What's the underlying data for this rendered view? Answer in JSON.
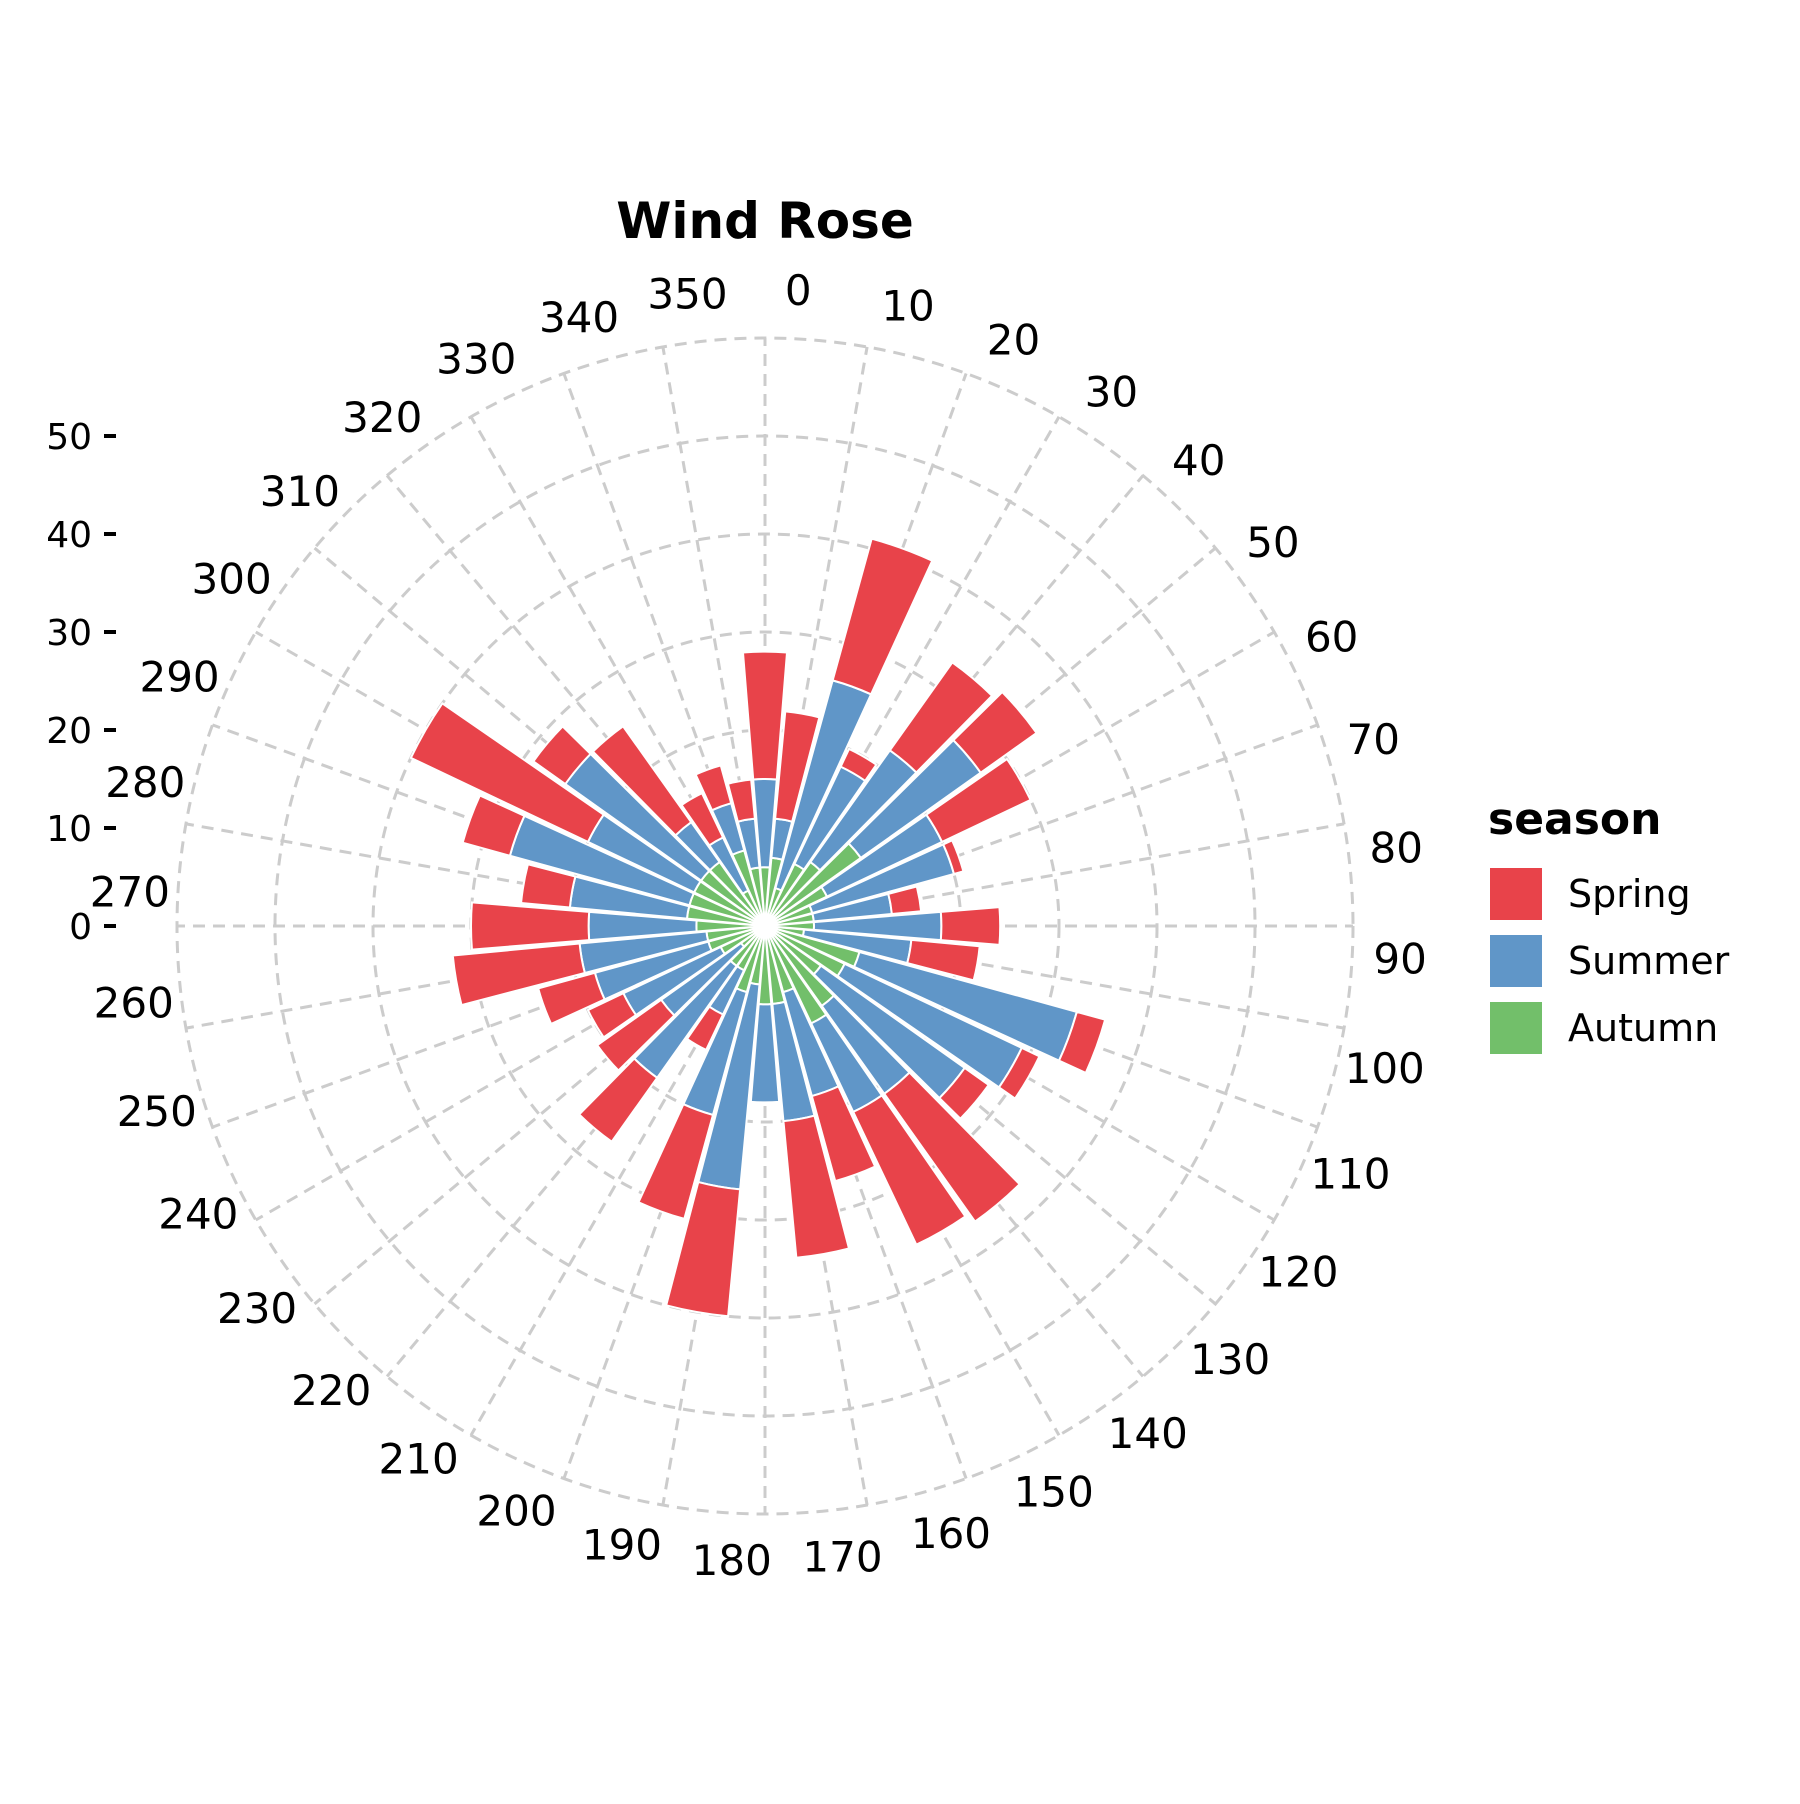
{
  "chart_data": {
    "type": "bar",
    "coord": "polar",
    "title": "Wind Rose",
    "angle_ticks": [
      "0",
      "10",
      "20",
      "30",
      "40",
      "50",
      "60",
      "70",
      "80",
      "90",
      "100",
      "110",
      "120",
      "130",
      "140",
      "150",
      "160",
      "170",
      "180",
      "190",
      "200",
      "210",
      "220",
      "230",
      "240",
      "250",
      "260",
      "270",
      "280",
      "290",
      "300",
      "310",
      "320",
      "330",
      "340",
      "350"
    ],
    "radial_ticks": [
      "0",
      "10",
      "20",
      "30",
      "40",
      "50"
    ],
    "radial_tick_values": [
      0,
      10,
      20,
      30,
      40,
      50
    ],
    "rlim": [
      0,
      60
    ],
    "stacked": true,
    "grid": true,
    "legend": {
      "title": "season",
      "position": "right"
    },
    "directions": [
      0,
      10,
      20,
      30,
      40,
      50,
      60,
      70,
      80,
      90,
      100,
      110,
      120,
      130,
      140,
      150,
      160,
      170,
      180,
      190,
      200,
      210,
      220,
      230,
      240,
      250,
      260,
      270,
      280,
      290,
      300,
      310,
      320,
      330,
      340,
      350
    ],
    "series": [
      {
        "name": "Autumn",
        "color": "#72bf6a",
        "values": [
          6,
          7,
          4,
          7,
          8,
          12,
          7,
          5,
          5,
          5,
          4,
          10,
          9,
          7,
          10,
          11,
          7,
          8,
          8,
          6,
          7,
          5,
          5,
          3,
          5,
          6,
          6,
          7,
          8,
          8,
          8,
          8,
          8,
          4,
          8,
          6
        ]
      },
      {
        "name": "Summer",
        "color": "#6096c8",
        "values": [
          9,
          4,
          22,
          11,
          14,
          15,
          13,
          15,
          8,
          13,
          11,
          23,
          20,
          18,
          11,
          10,
          11,
          12,
          10,
          21,
          13,
          5,
          14,
          10,
          11,
          12,
          13,
          11,
          12,
          19,
          12,
          17,
          5,
          6,
          5,
          5
        ]
      },
      {
        "name": "Spring",
        "color": "#e8434a",
        "values": [
          13,
          11,
          15,
          2,
          11,
          7,
          10,
          1,
          3,
          6,
          7,
          3,
          2,
          3,
          16,
          15,
          9,
          14,
          0,
          13,
          11,
          4,
          8,
          8,
          4,
          6,
          13,
          12,
          5,
          5,
          20,
          4,
          12,
          5,
          4,
          4
        ]
      }
    ]
  }
}
